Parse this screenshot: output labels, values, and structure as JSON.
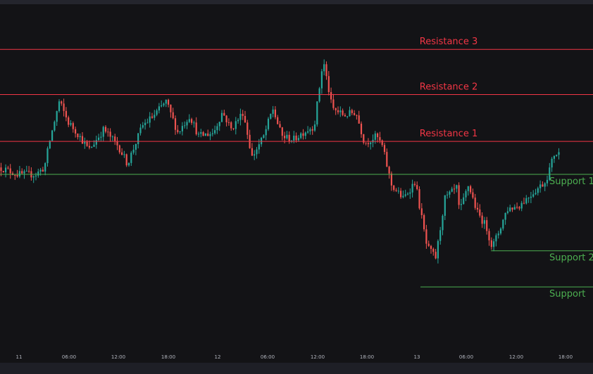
{
  "chart_data": {
    "type": "candlestick",
    "title": "",
    "x_ticks": [
      "11",
      "06:00",
      "12:00",
      "18:00",
      "12",
      "06:00",
      "12:00",
      "18:00",
      "13",
      "06:00",
      "12:00",
      "18:00"
    ],
    "y_range": [
      0,
      100
    ],
    "colors": {
      "up": "#26a69a",
      "down": "#ef5350",
      "resistance": "#f23645",
      "support": "#4caf50",
      "background": "#131316",
      "axis_text": "#b2b5be"
    },
    "levels": [
      {
        "label": "Resistance 3",
        "value": 87.0,
        "kind": "resistance",
        "from": 0
      },
      {
        "label": "Resistance 2",
        "value": 74.0,
        "kind": "resistance",
        "from": 0
      },
      {
        "label": "Resistance 1",
        "value": 60.5,
        "kind": "resistance",
        "from": 0
      },
      {
        "label": "Support 1",
        "value": 51.0,
        "kind": "support",
        "from": 0
      },
      {
        "label": "Support 2",
        "value": 29.0,
        "kind": "support",
        "from": 0.828
      },
      {
        "label": "Support",
        "value": 18.6,
        "kind": "support",
        "from": 0.709
      }
    ],
    "price_path": [
      [
        0,
        53
      ],
      [
        0.03,
        51
      ],
      [
        0.06,
        51
      ],
      [
        0.075,
        53
      ],
      [
        0.083,
        60
      ],
      [
        0.1,
        72
      ],
      [
        0.115,
        66
      ],
      [
        0.13,
        63
      ],
      [
        0.15,
        58
      ],
      [
        0.175,
        64
      ],
      [
        0.2,
        59
      ],
      [
        0.215,
        54
      ],
      [
        0.24,
        65
      ],
      [
        0.26,
        68
      ],
      [
        0.28,
        72
      ],
      [
        0.3,
        63
      ],
      [
        0.32,
        68
      ],
      [
        0.335,
        62
      ],
      [
        0.36,
        63
      ],
      [
        0.375,
        69
      ],
      [
        0.39,
        64
      ],
      [
        0.41,
        69
      ],
      [
        0.425,
        56
      ],
      [
        0.445,
        62
      ],
      [
        0.46,
        70
      ],
      [
        0.475,
        62
      ],
      [
        0.495,
        61
      ],
      [
        0.51,
        63
      ],
      [
        0.53,
        65
      ],
      [
        0.545,
        84
      ],
      [
        0.56,
        70
      ],
      [
        0.58,
        68
      ],
      [
        0.6,
        69
      ],
      [
        0.615,
        60
      ],
      [
        0.635,
        62
      ],
      [
        0.645,
        59
      ],
      [
        0.66,
        48
      ],
      [
        0.68,
        44
      ],
      [
        0.7,
        49
      ],
      [
        0.72,
        30
      ],
      [
        0.735,
        27
      ],
      [
        0.75,
        44
      ],
      [
        0.77,
        47
      ],
      [
        0.775,
        40
      ],
      [
        0.79,
        48
      ],
      [
        0.805,
        40
      ],
      [
        0.82,
        36
      ],
      [
        0.83,
        30
      ],
      [
        0.84,
        34
      ],
      [
        0.855,
        41
      ],
      [
        0.875,
        42
      ],
      [
        0.9,
        46
      ],
      [
        0.92,
        49
      ],
      [
        0.935,
        57
      ],
      [
        0.945,
        57
      ]
    ]
  }
}
